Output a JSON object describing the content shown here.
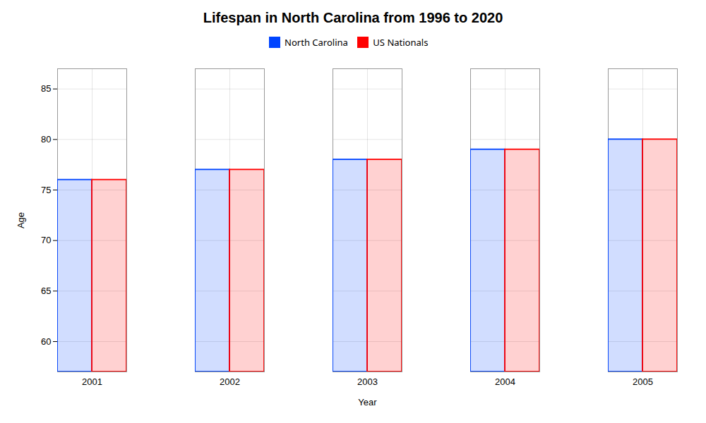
{
  "chart_data": {
    "type": "bar",
    "title": "Lifespan in North Carolina from 1996 to 2020",
    "xlabel": "Year",
    "ylabel": "Age",
    "categories": [
      "2001",
      "2002",
      "2003",
      "2004",
      "2005"
    ],
    "series": [
      {
        "name": "North Carolina",
        "color": "#0044ff",
        "values": [
          76,
          77,
          78,
          79,
          80
        ]
      },
      {
        "name": "US Nationals",
        "color": "#ff0000",
        "values": [
          76,
          77,
          78,
          79,
          80
        ]
      }
    ],
    "ylim": [
      57,
      87
    ],
    "yticks": [
      60,
      65,
      70,
      75,
      80,
      85
    ],
    "grid": true,
    "legend": "top"
  }
}
